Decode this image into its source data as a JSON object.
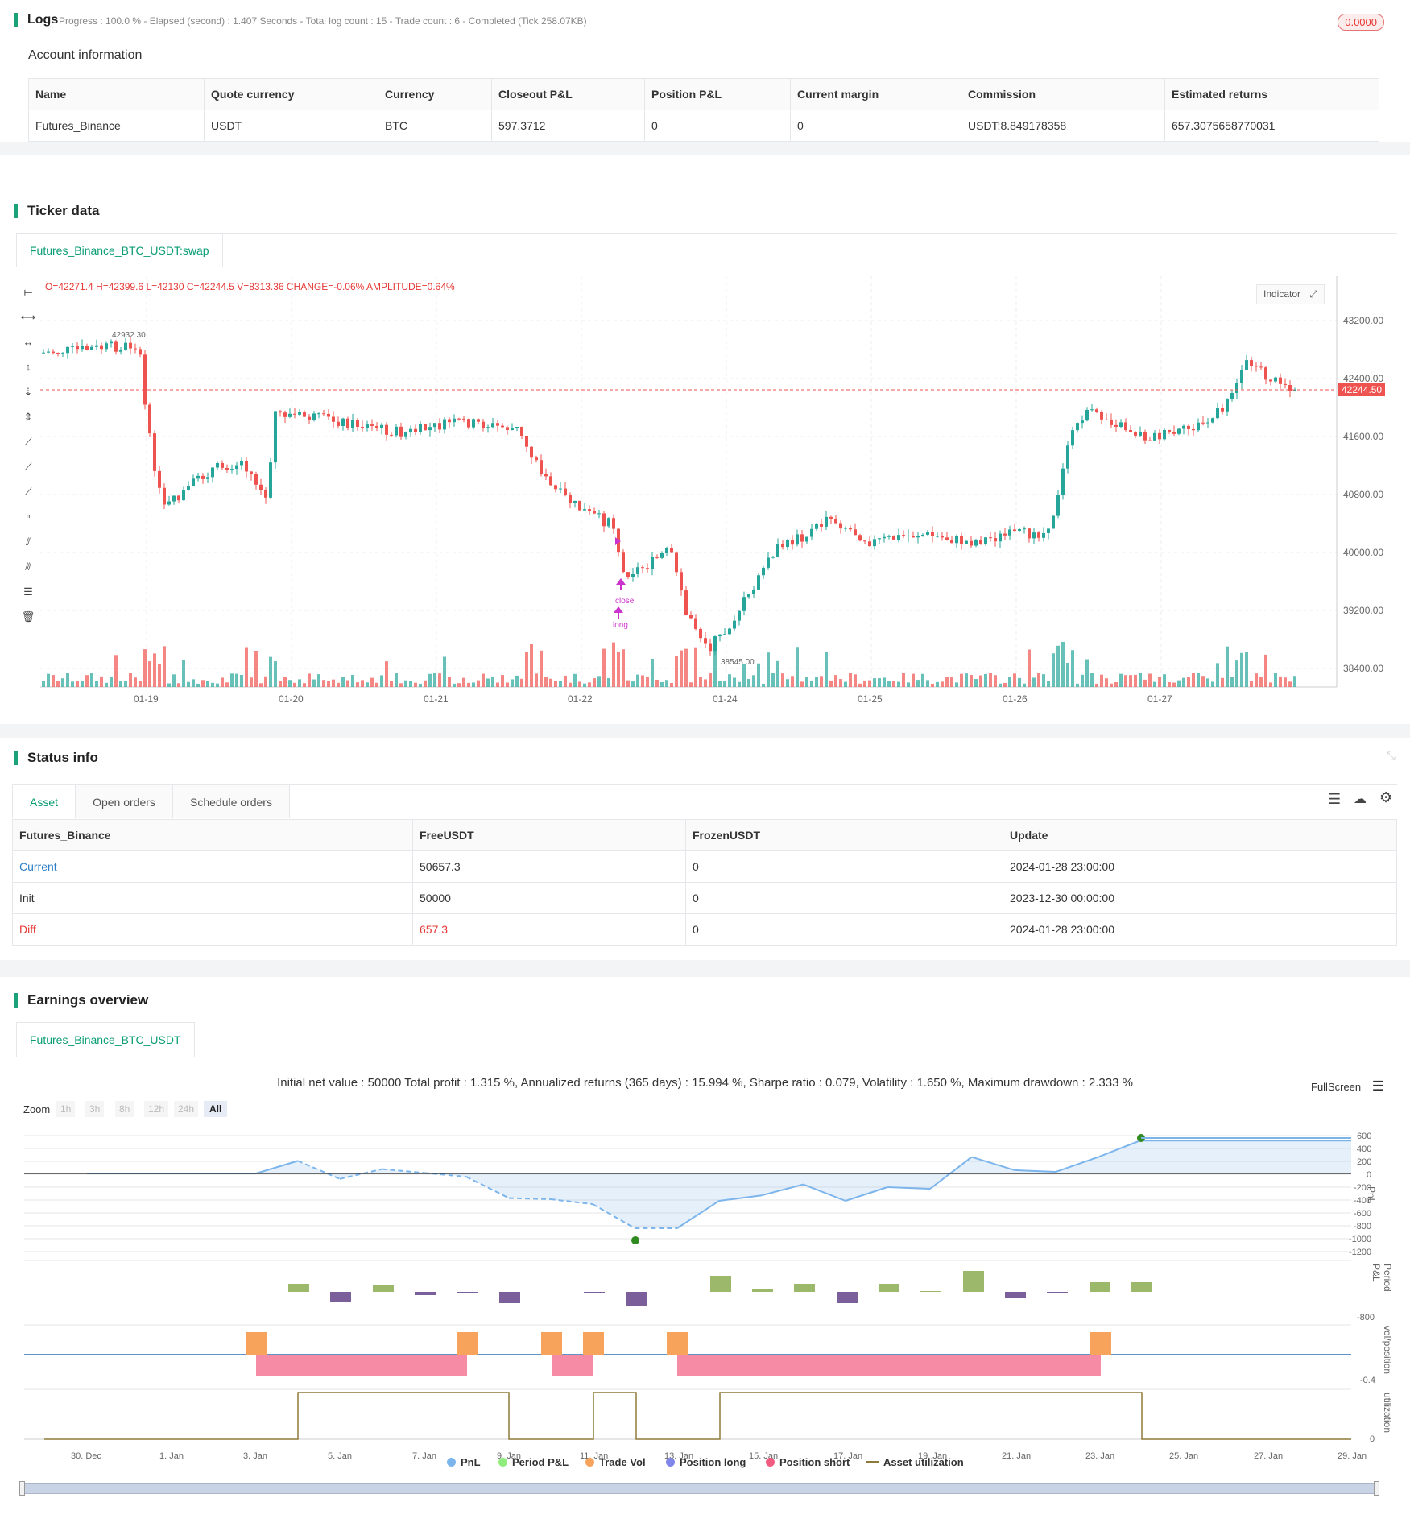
{
  "logs": {
    "title": "Logs",
    "status": "Progress : 100.0 % - Elapsed (second) : 1.407  Seconds - Total log count : 15 - Trade count : 6 - Completed (Tick 258.07KB)",
    "badge": "0.0000"
  },
  "account": {
    "title": "Account information",
    "headers": [
      "Name",
      "Quote currency",
      "Currency",
      "Closeout P&L",
      "Position P&L",
      "Current margin",
      "Commission",
      "Estimated returns"
    ],
    "row": [
      "Futures_Binance",
      "USDT",
      "BTC",
      "597.3712",
      "0",
      "0",
      "USDT:8.849178358",
      "657.3075658770031"
    ]
  },
  "ticker": {
    "title": "Ticker data",
    "tab": "Futures_Binance_BTC_USDT:swap",
    "ohlc": "O=42271.4 H=42399.6 L=42130 C=42244.5 V=8313.36 CHANGE=-0.06% AMPLITUDE=0.64%",
    "indicator_button": "Indicator",
    "price_labels": [
      "43200.00",
      "42400.00",
      "41600.00",
      "40800.00",
      "40000.00",
      "39200.00",
      "38400.00"
    ],
    "current_price": "42244.50",
    "high_marker": "42932.30",
    "low_marker": "38545.00",
    "date_labels": [
      "01-19",
      "01-20",
      "01-21",
      "01-22",
      "01-24",
      "01-25",
      "01-26",
      "01-27"
    ],
    "signal_close": "close",
    "signal_long": "long",
    "colors": {
      "up": "#26a69a",
      "down": "#ef5350",
      "signal": "#cc33cc"
    }
  },
  "status": {
    "title": "Status info",
    "tabs": [
      "Asset",
      "Open orders",
      "Schedule orders"
    ],
    "headers": [
      "Futures_Binance",
      "FreeUSDT",
      "FrozenUSDT",
      "Update"
    ],
    "rows": [
      [
        "Current",
        "50657.3",
        "0",
        "2024-01-28 23:00:00"
      ],
      [
        "Init",
        "50000",
        "0",
        "2023-12-30 00:00:00"
      ],
      [
        "Diff",
        "657.3",
        "0",
        "2024-01-28 23:00:00"
      ]
    ]
  },
  "earnings": {
    "title": "Earnings overview",
    "tab": "Futures_Binance_BTC_USDT",
    "summary": "Initial net value : 50000 Total profit : 1.315 %, Annualized returns (365 days) : 15.994 %, Sharpe ratio : 0.079, Volatility : 1.650 %, Maximum drawdown : 2.333 %",
    "fullscreen": "FullScreen",
    "zoom_label": "Zoom",
    "zoom_options": [
      "1h",
      "3h",
      "8h",
      "12h",
      "24h",
      "All"
    ],
    "pnl_ticks": [
      "600",
      "400",
      "200",
      "0",
      "-200",
      "-400",
      "-600",
      "-800",
      "-1000",
      "-1200"
    ],
    "period_tick": "-800",
    "vol_tick": "-0.4",
    "util_tick": "0",
    "axis_titles": [
      "PnL",
      "Period P&L",
      "vol/position",
      "utilization"
    ],
    "x_labels": [
      "30. Dec",
      "1. Jan",
      "3. Jan",
      "5. Jan",
      "7. Jan",
      "9. Jan",
      "11. Jan",
      "13. Jan",
      "15. Jan",
      "17. Jan",
      "19. Jan",
      "21. Jan",
      "23. Jan",
      "25. Jan",
      "27. Jan",
      "29. Jan"
    ],
    "legend": [
      {
        "name": "PnL",
        "color": "#7cb5ec"
      },
      {
        "name": "Period P&L",
        "color": "#90ed7d"
      },
      {
        "name": "Trade Vol",
        "color": "#f7a35c"
      },
      {
        "name": "Position long",
        "color": "#8085e9"
      },
      {
        "name": "Position short",
        "color": "#f15c80"
      },
      {
        "name": "Asset utilization",
        "color": "#8d7a3a"
      }
    ]
  },
  "chart_data": [
    {
      "type": "line",
      "title": "",
      "x": [
        "30. Dec",
        "3. Jan",
        "4. Jan",
        "5. Jan",
        "6. Jan",
        "7. Jan",
        "8. Jan",
        "9. Jan",
        "10. Jan",
        "11. Jan",
        "12. Jan",
        "13. Jan",
        "14. Jan",
        "15. Jan",
        "16. Jan",
        "17. Jan",
        "18. Jan",
        "19. Jan",
        "20. Jan",
        "21. Jan",
        "22. Jan",
        "23. Jan",
        "24. Jan",
        "29. Jan"
      ],
      "series": [
        {
          "name": "PnL",
          "values": [
            0,
            0,
            230,
            -100,
            80,
            10,
            -60,
            -450,
            -470,
            -560,
            -1000,
            -1000,
            -500,
            -400,
            -200,
            -500,
            -250,
            -280,
            300,
            60,
            30,
            300,
            600,
            600
          ]
        }
      ],
      "ylabel": "PnL",
      "ylim": [
        -1200,
        700
      ]
    }
  ]
}
